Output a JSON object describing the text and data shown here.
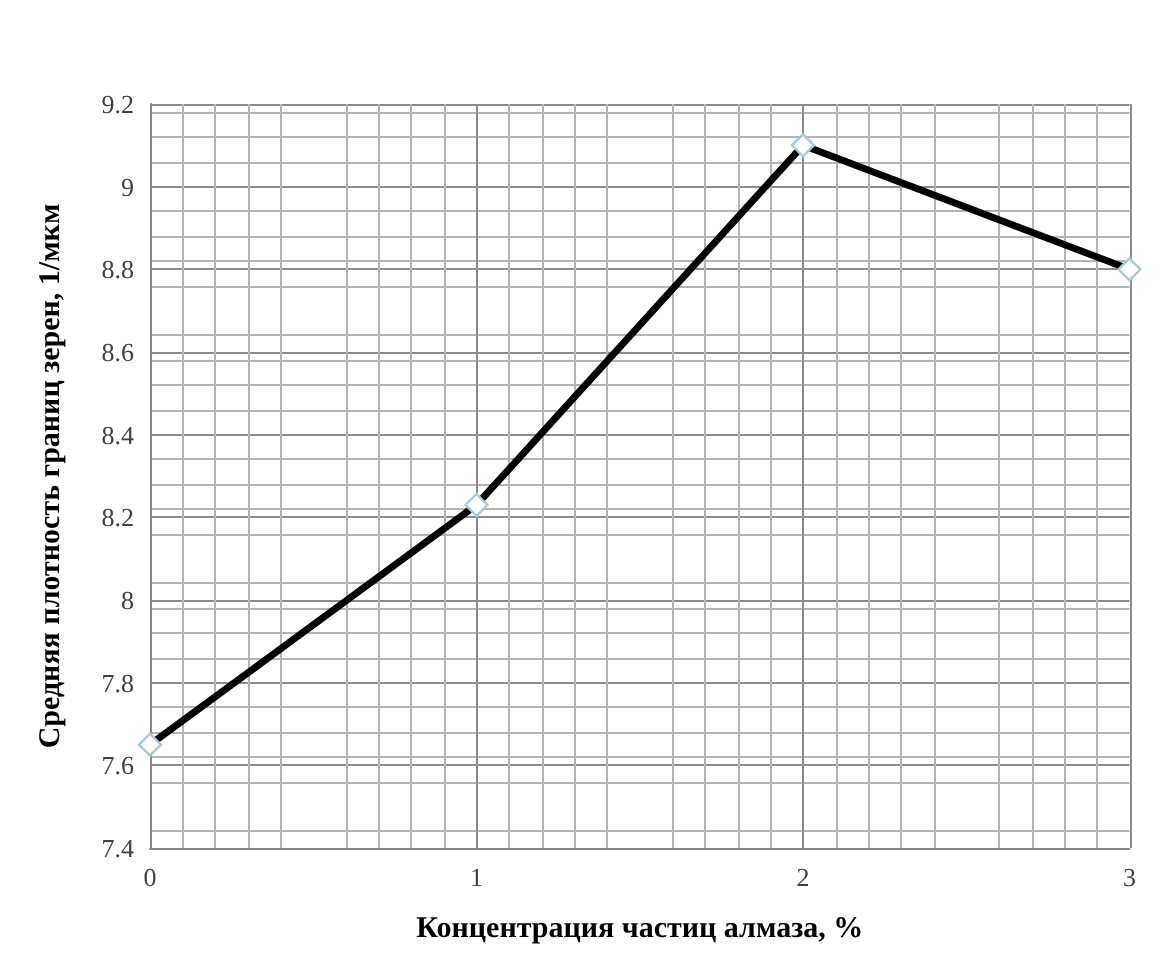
{
  "chart_data": {
    "type": "line",
    "xlabel": "Концентрация частиц алмаза, %",
    "ylabel": "Средняя плотность границ зерен, 1/мкм",
    "x": [
      0,
      1,
      2,
      3
    ],
    "series": [
      {
        "color": "#000000",
        "values": [
          7.65,
          8.23,
          9.1,
          8.8
        ]
      }
    ],
    "xlim": [
      0,
      3
    ],
    "xticks": [
      0,
      1,
      2,
      3
    ],
    "ylim": [
      7.4,
      9.2
    ],
    "yticks": [
      7.4,
      7.6,
      7.8,
      8,
      8.2,
      8.4,
      8.6,
      8.8,
      9,
      9.2
    ],
    "grid": true,
    "marker": "diamond",
    "line_style": "solid"
  }
}
